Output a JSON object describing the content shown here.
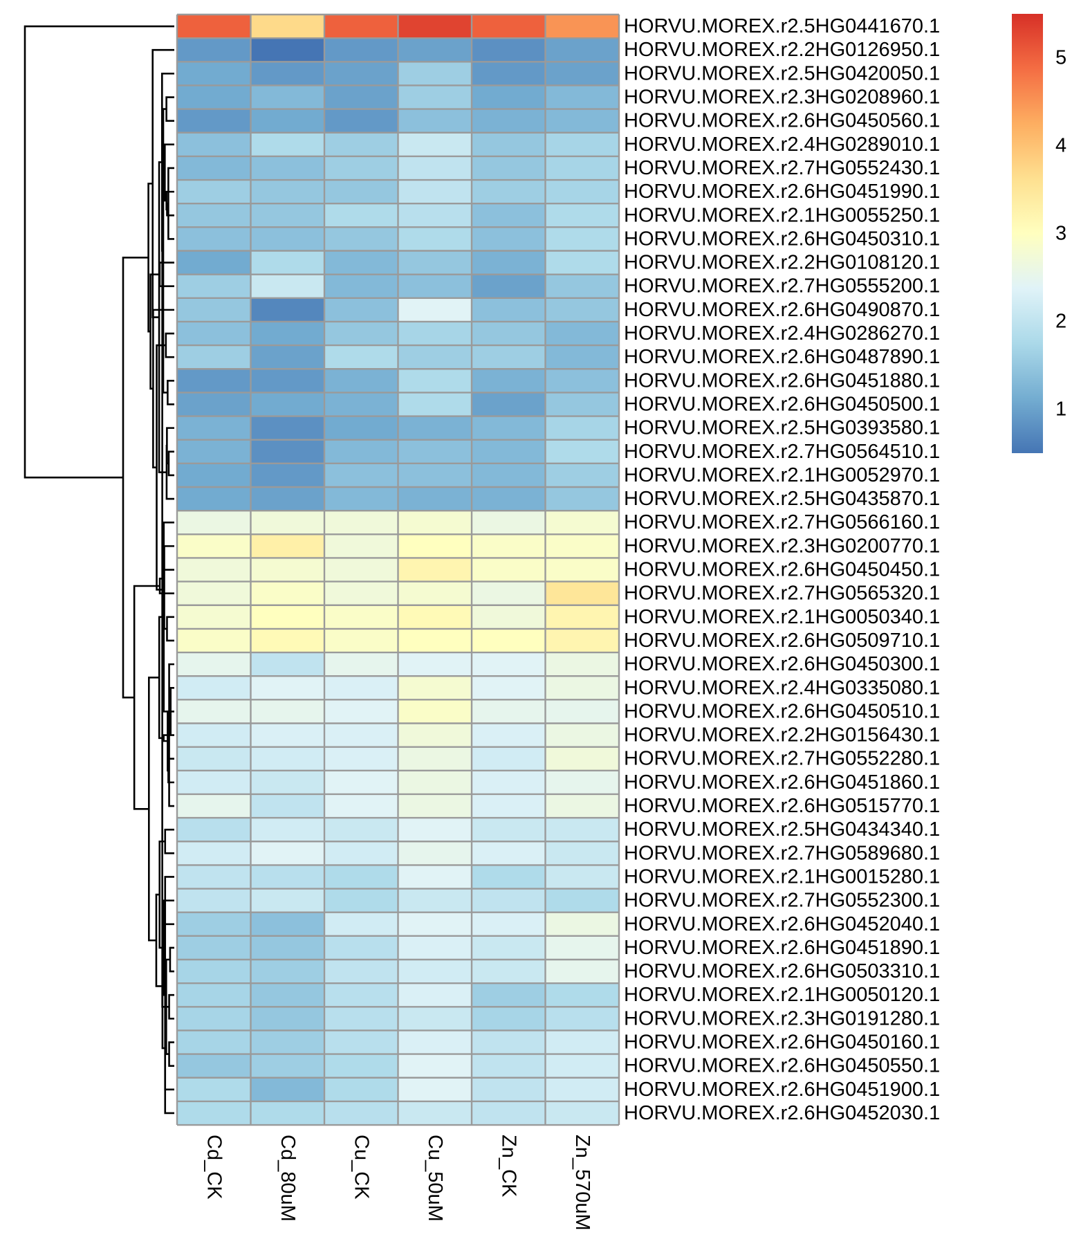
{
  "chart_data": {
    "type": "heatmap",
    "title": "",
    "xlabel": "",
    "ylabel": "",
    "columns": [
      "Cd_CK",
      "Cd_80uM",
      "Cu_CK",
      "Cu_50uM",
      "Zn_CK",
      "Zn_570uM"
    ],
    "rows": [
      "HORVU.MOREX.r2.5HG0441670.1",
      "HORVU.MOREX.r2.2HG0126950.1",
      "HORVU.MOREX.r2.5HG0420050.1",
      "HORVU.MOREX.r2.3HG0208960.1",
      "HORVU.MOREX.r2.6HG0450560.1",
      "HORVU.MOREX.r2.4HG0289010.1",
      "HORVU.MOREX.r2.7HG0552430.1",
      "HORVU.MOREX.r2.6HG0451990.1",
      "HORVU.MOREX.r2.1HG0055250.1",
      "HORVU.MOREX.r2.6HG0450310.1",
      "HORVU.MOREX.r2.2HG0108120.1",
      "HORVU.MOREX.r2.7HG0555200.1",
      "HORVU.MOREX.r2.6HG0490870.1",
      "HORVU.MOREX.r2.4HG0286270.1",
      "HORVU.MOREX.r2.6HG0487890.1",
      "HORVU.MOREX.r2.6HG0451880.1",
      "HORVU.MOREX.r2.6HG0450500.1",
      "HORVU.MOREX.r2.5HG0393580.1",
      "HORVU.MOREX.r2.7HG0564510.1",
      "HORVU.MOREX.r2.1HG0052970.1",
      "HORVU.MOREX.r2.5HG0435870.1",
      "HORVU.MOREX.r2.7HG0566160.1",
      "HORVU.MOREX.r2.3HG0200770.1",
      "HORVU.MOREX.r2.6HG0450450.1",
      "HORVU.MOREX.r2.7HG0565320.1",
      "HORVU.MOREX.r2.1HG0050340.1",
      "HORVU.MOREX.r2.6HG0509710.1",
      "HORVU.MOREX.r2.6HG0450300.1",
      "HORVU.MOREX.r2.4HG0335080.1",
      "HORVU.MOREX.r2.6HG0450510.1",
      "HORVU.MOREX.r2.2HG0156430.1",
      "HORVU.MOREX.r2.7HG0552280.1",
      "HORVU.MOREX.r2.6HG0451860.1",
      "HORVU.MOREX.r2.6HG0515770.1",
      "HORVU.MOREX.r2.5HG0434340.1",
      "HORVU.MOREX.r2.7HG0589680.1",
      "HORVU.MOREX.r2.1HG0015280.1",
      "HORVU.MOREX.r2.7HG0552300.1",
      "HORVU.MOREX.r2.6HG0452040.1",
      "HORVU.MOREX.r2.6HG0451890.1",
      "HORVU.MOREX.r2.6HG0503310.1",
      "HORVU.MOREX.r2.1HG0050120.1",
      "HORVU.MOREX.r2.3HG0191280.1",
      "HORVU.MOREX.r2.6HG0450160.1",
      "HORVU.MOREX.r2.6HG0450550.1",
      "HORVU.MOREX.r2.6HG0451900.1",
      "HORVU.MOREX.r2.6HG0452030.1"
    ],
    "values": [
      [
        5.0,
        3.7,
        5.0,
        5.3,
        5.0,
        4.5
      ],
      [
        0.9,
        0.5,
        0.9,
        1.0,
        0.8,
        1.0
      ],
      [
        1.1,
        0.9,
        1.0,
        1.6,
        0.9,
        1.0
      ],
      [
        1.1,
        1.3,
        1.0,
        1.6,
        1.1,
        1.3
      ],
      [
        0.9,
        1.1,
        0.9,
        1.4,
        1.2,
        1.3
      ],
      [
        1.4,
        1.8,
        1.6,
        2.1,
        1.5,
        1.7
      ],
      [
        1.3,
        1.4,
        1.6,
        2.0,
        1.5,
        1.7
      ],
      [
        1.6,
        1.5,
        1.5,
        2.0,
        1.6,
        1.7
      ],
      [
        1.5,
        1.5,
        1.8,
        1.9,
        1.4,
        1.8
      ],
      [
        1.4,
        1.4,
        1.5,
        1.8,
        1.4,
        1.8
      ],
      [
        1.1,
        1.8,
        1.3,
        1.5,
        1.2,
        1.8
      ],
      [
        1.6,
        2.1,
        1.3,
        1.4,
        1.0,
        1.5
      ],
      [
        1.5,
        0.7,
        1.4,
        2.4,
        1.4,
        1.5
      ],
      [
        1.4,
        1.1,
        1.5,
        1.7,
        1.5,
        1.3
      ],
      [
        1.6,
        1.0,
        1.8,
        1.6,
        1.6,
        1.3
      ],
      [
        0.9,
        0.9,
        1.2,
        1.8,
        1.2,
        1.4
      ],
      [
        1.0,
        1.1,
        1.2,
        1.8,
        1.0,
        1.5
      ],
      [
        1.2,
        0.8,
        1.1,
        1.2,
        1.3,
        1.7
      ],
      [
        1.2,
        0.8,
        1.3,
        1.4,
        1.3,
        1.8
      ],
      [
        1.1,
        0.9,
        1.4,
        1.4,
        1.3,
        1.6
      ],
      [
        1.1,
        1.0,
        1.3,
        1.2,
        1.2,
        1.5
      ],
      [
        2.6,
        2.7,
        2.7,
        2.8,
        2.6,
        2.8
      ],
      [
        2.9,
        3.3,
        2.7,
        3.0,
        2.9,
        2.9
      ],
      [
        2.7,
        2.8,
        2.7,
        3.2,
        2.9,
        2.9
      ],
      [
        2.7,
        2.9,
        2.7,
        2.8,
        2.6,
        3.5
      ],
      [
        2.8,
        3.0,
        2.9,
        3.1,
        2.7,
        3.2
      ],
      [
        2.9,
        3.1,
        2.9,
        3.0,
        3.0,
        3.2
      ],
      [
        2.5,
        2.0,
        2.5,
        2.4,
        2.4,
        2.6
      ],
      [
        2.2,
        2.4,
        2.3,
        2.8,
        2.4,
        2.6
      ],
      [
        2.5,
        2.5,
        2.4,
        2.9,
        2.5,
        2.5
      ],
      [
        2.2,
        2.3,
        2.3,
        2.7,
        2.3,
        2.6
      ],
      [
        2.1,
        2.2,
        2.3,
        2.6,
        2.2,
        2.7
      ],
      [
        2.2,
        2.1,
        2.4,
        2.6,
        2.3,
        2.5
      ],
      [
        2.5,
        2.0,
        2.4,
        2.6,
        2.3,
        2.6
      ],
      [
        1.9,
        2.2,
        2.1,
        2.4,
        2.1,
        2.1
      ],
      [
        2.2,
        2.4,
        2.2,
        2.5,
        2.3,
        2.1
      ],
      [
        2.0,
        1.9,
        1.8,
        2.4,
        1.8,
        2.1
      ],
      [
        2.0,
        2.1,
        1.8,
        2.1,
        2.0,
        1.8
      ],
      [
        1.6,
        1.4,
        2.2,
        2.4,
        2.3,
        2.6
      ],
      [
        1.6,
        1.5,
        1.9,
        2.3,
        2.1,
        2.5
      ],
      [
        1.7,
        1.6,
        2.0,
        2.2,
        2.1,
        2.5
      ],
      [
        1.7,
        1.5,
        1.9,
        2.3,
        1.6,
        1.8
      ],
      [
        1.7,
        1.5,
        1.9,
        2.1,
        1.7,
        1.9
      ],
      [
        1.7,
        1.6,
        1.9,
        2.3,
        2.0,
        2.2
      ],
      [
        1.5,
        1.6,
        1.8,
        2.4,
        2.0,
        2.2
      ],
      [
        1.8,
        1.3,
        1.8,
        2.4,
        2.0,
        2.2
      ],
      [
        1.8,
        1.8,
        1.9,
        2.1,
        2.0,
        2.1
      ]
    ],
    "color_scale": {
      "domain": [
        0.5,
        5.5
      ],
      "colors": [
        "#4575b4",
        "#74add1",
        "#abd9e9",
        "#e0f3f8",
        "#ffffbf",
        "#fee090",
        "#fdae61",
        "#f46d43",
        "#d73027"
      ],
      "legend_ticks": [
        1,
        2,
        3,
        4,
        5
      ]
    },
    "cell_border_color": "#9a9a9a",
    "row_dendrogram": true,
    "legend_position": "right"
  }
}
